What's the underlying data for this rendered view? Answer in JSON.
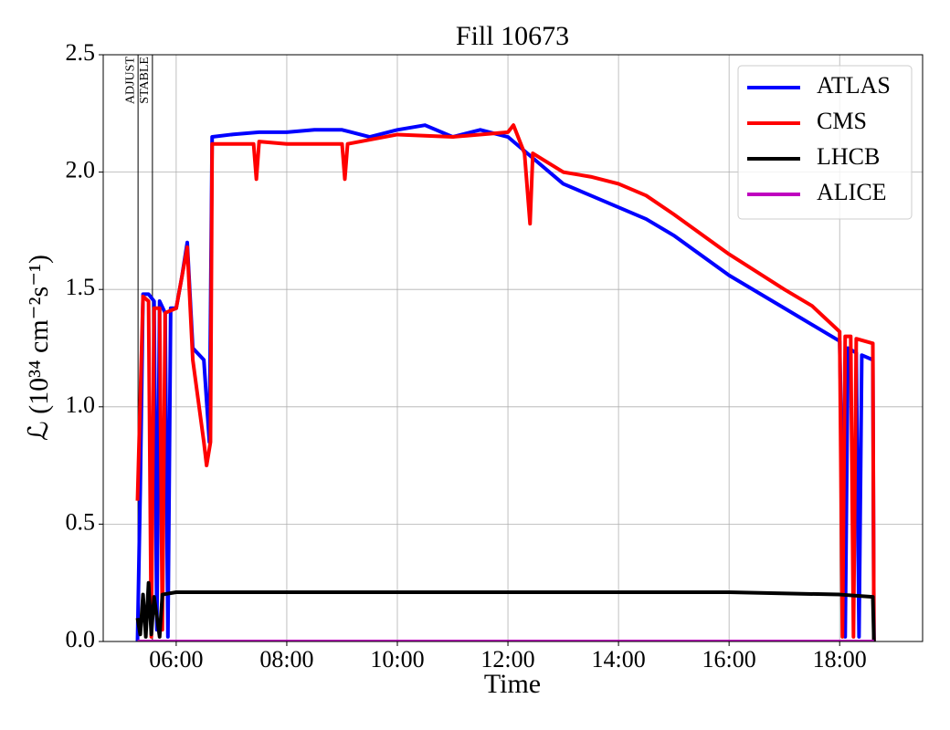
{
  "chart_data": {
    "type": "line",
    "title": "Fill 10673",
    "xlabel": "Time",
    "ylabel": "ℒ (10³⁴ cm⁻²s⁻¹)",
    "xlim": [
      4.68,
      19.5
    ],
    "ylim": [
      0,
      2.5
    ],
    "xticks": [
      {
        "value": 6,
        "label": "06:00"
      },
      {
        "value": 8,
        "label": "08:00"
      },
      {
        "value": 10,
        "label": "10:00"
      },
      {
        "value": 12,
        "label": "12:00"
      },
      {
        "value": 14,
        "label": "14:00"
      },
      {
        "value": 16,
        "label": "16:00"
      },
      {
        "value": 18,
        "label": "18:00"
      }
    ],
    "yticks": [
      {
        "value": 0,
        "label": "0.0"
      },
      {
        "value": 0.5,
        "label": "0.5"
      },
      {
        "value": 1,
        "label": "1.0"
      },
      {
        "value": 1.5,
        "label": "1.5"
      },
      {
        "value": 2,
        "label": "2.0"
      },
      {
        "value": 2.5,
        "label": "2.5"
      }
    ],
    "grid": true,
    "legend": "upper right",
    "annotations": [
      {
        "text": "ADJUST",
        "x": 5.31
      },
      {
        "text": "STABLE",
        "x": 5.57
      }
    ],
    "series": [
      {
        "name": "ATLAS",
        "color": "#0000ff",
        "x": [
          5.3,
          5.35,
          5.4,
          5.5,
          5.6,
          5.65,
          5.7,
          5.8,
          5.85,
          5.9,
          6.0,
          6.1,
          6.2,
          6.3,
          6.5,
          6.6,
          6.65,
          7.0,
          7.5,
          8.0,
          8.5,
          9.0,
          9.5,
          10.0,
          10.5,
          11.0,
          11.5,
          12.0,
          12.5,
          13.0,
          13.5,
          14.0,
          14.5,
          15.0,
          16.0,
          17.0,
          18.0,
          18.1,
          18.15,
          18.3,
          18.35,
          18.4,
          18.6,
          18.62
        ],
        "values": [
          0,
          0.65,
          1.48,
          1.48,
          1.45,
          0.05,
          1.45,
          1.4,
          0.02,
          1.42,
          1.42,
          1.55,
          1.7,
          1.25,
          1.2,
          0.85,
          2.15,
          2.16,
          2.17,
          2.17,
          2.18,
          2.18,
          2.15,
          2.18,
          2.2,
          2.15,
          2.18,
          2.15,
          2.05,
          1.95,
          1.9,
          1.85,
          1.8,
          1.73,
          1.56,
          1.42,
          1.28,
          0.02,
          1.25,
          1.23,
          0.02,
          1.22,
          1.2,
          0
        ]
      },
      {
        "name": "CMS",
        "color": "#ff0000",
        "x": [
          5.3,
          5.4,
          5.5,
          5.55,
          5.6,
          5.7,
          5.75,
          5.8,
          6.0,
          6.2,
          6.3,
          6.5,
          6.55,
          6.62,
          6.65,
          7.0,
          7.4,
          7.45,
          7.5,
          8.0,
          9.0,
          9.05,
          9.1,
          10.0,
          11.0,
          12.0,
          12.1,
          12.3,
          12.4,
          12.45,
          13.0,
          13.5,
          14.0,
          14.5,
          15.0,
          16.0,
          17.0,
          17.5,
          18.0,
          18.05,
          18.1,
          18.2,
          18.25,
          18.3,
          18.6,
          18.62
        ],
        "values": [
          0.6,
          1.47,
          1.45,
          0.02,
          1.42,
          1.42,
          0.05,
          1.4,
          1.42,
          1.68,
          1.2,
          0.85,
          0.75,
          0.85,
          2.12,
          2.12,
          2.12,
          1.97,
          2.13,
          2.12,
          2.12,
          1.97,
          2.12,
          2.16,
          2.15,
          2.17,
          2.2,
          2.08,
          1.78,
          2.08,
          2.0,
          1.98,
          1.95,
          1.9,
          1.82,
          1.65,
          1.5,
          1.43,
          1.32,
          0.02,
          1.3,
          1.3,
          0.02,
          1.29,
          1.27,
          0
        ]
      },
      {
        "name": "LHCB",
        "color": "#000000",
        "x": [
          5.3,
          5.35,
          5.4,
          5.45,
          5.5,
          5.55,
          5.6,
          5.7,
          5.75,
          6.0,
          8.0,
          10.0,
          12.0,
          14.0,
          16.0,
          18.0,
          18.6,
          18.62
        ],
        "values": [
          0.1,
          0.03,
          0.2,
          0.02,
          0.25,
          0.03,
          0.19,
          0.02,
          0.2,
          0.21,
          0.21,
          0.21,
          0.21,
          0.21,
          0.21,
          0.2,
          0.19,
          0
        ]
      },
      {
        "name": "ALICE",
        "color": "#bf00bf",
        "x": [
          5.3,
          18.62
        ],
        "values": [
          0,
          0
        ]
      }
    ]
  }
}
